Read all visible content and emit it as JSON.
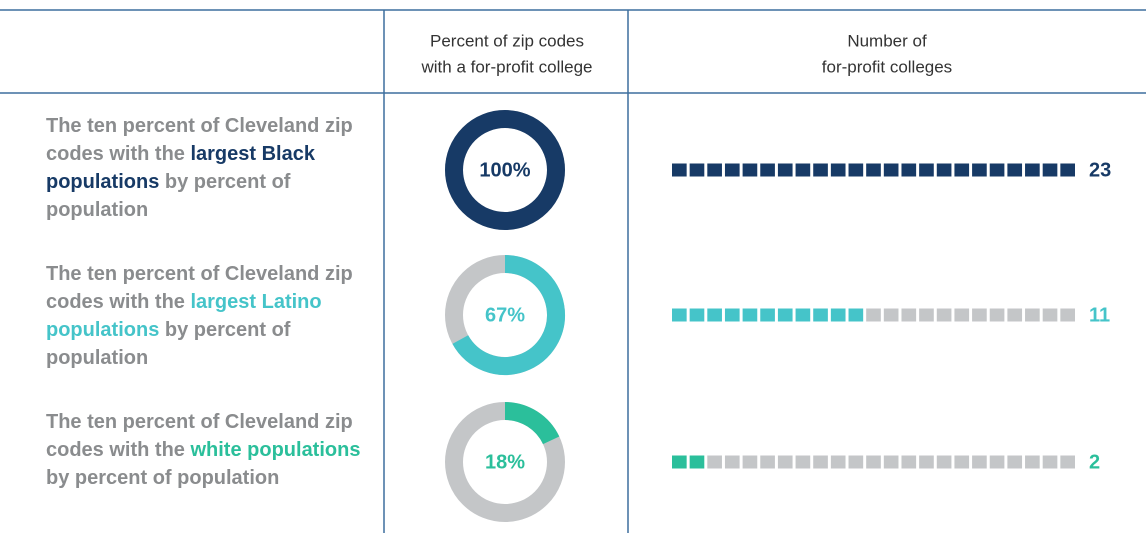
{
  "table": {
    "headers": [
      [
        "Percent of zip codes",
        "with a for-profit college"
      ],
      [
        "Number of",
        "for-profit colleges"
      ]
    ],
    "xlim": [
      0,
      23
    ],
    "rows": [
      {
        "label_start": "The ten percent of Cleveland zip codes with the ",
        "label_highlight": "largest Black populations",
        "label_end": " by percent of population",
        "percent": 100,
        "percent_label": "100%",
        "count": 23,
        "color": "#173a66"
      },
      {
        "label_start": "The ten percent of Cleveland zip codes with the ",
        "label_highlight": "largest Latino populations",
        "label_end": " by percent of population",
        "percent": 67,
        "percent_label": "67%",
        "count": 11,
        "color": "#45c4c9"
      },
      {
        "label_start": "The ten percent of Cleveland zip codes with the ",
        "label_highlight": "white populations",
        "label_end": " by percent of population",
        "percent": 18,
        "percent_label": "18%",
        "count": 2,
        "color": "#2bbf9b"
      }
    ]
  }
}
